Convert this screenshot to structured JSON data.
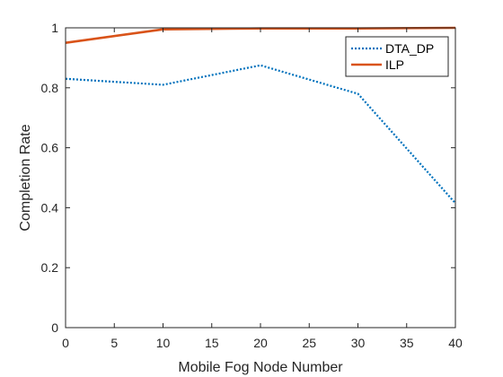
{
  "chart_data": {
    "type": "line",
    "title": "",
    "xlabel": "Mobile Fog Node Number",
    "ylabel": "Completion Rate",
    "xlim": [
      0,
      40
    ],
    "ylim": [
      0,
      1
    ],
    "xticks": [
      0,
      5,
      10,
      15,
      20,
      25,
      30,
      35,
      40
    ],
    "yticks": [
      0,
      0.2,
      0.4,
      0.6,
      0.8,
      1
    ],
    "xtick_labels": [
      "0",
      "5",
      "10",
      "15",
      "20",
      "25",
      "30",
      "35",
      "40"
    ],
    "ytick_labels": [
      "0",
      "0.2",
      "0.4",
      "0.6",
      "0.8",
      "1"
    ],
    "grid": false,
    "legend_position": "top-right",
    "series": [
      {
        "name": "DTA_DP",
        "color": "#0072BD",
        "line_style": "dotted",
        "x": [
          0,
          10,
          20,
          30,
          40
        ],
        "y": [
          0.83,
          0.81,
          0.875,
          0.78,
          0.415
        ]
      },
      {
        "name": "ILP",
        "color": "#D95319",
        "line_style": "solid",
        "x": [
          0,
          10,
          20,
          30,
          40
        ],
        "y": [
          0.95,
          0.995,
          0.998,
          0.998,
          1.0
        ]
      }
    ]
  }
}
